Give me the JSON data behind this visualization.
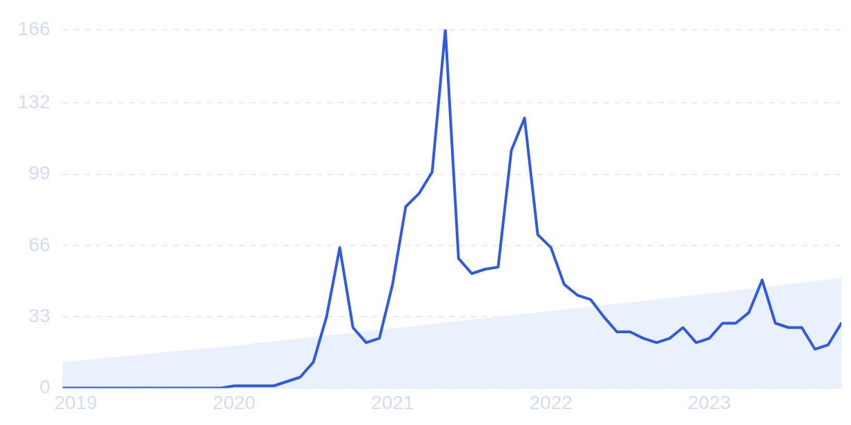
{
  "chart_data": {
    "type": "line",
    "x": [
      "2018-12",
      "2019-01",
      "2019-02",
      "2019-03",
      "2019-04",
      "2019-05",
      "2019-06",
      "2019-07",
      "2019-08",
      "2019-09",
      "2019-10",
      "2019-11",
      "2019-12",
      "2020-01",
      "2020-02",
      "2020-03",
      "2020-04",
      "2020-05",
      "2020-06",
      "2020-07",
      "2020-08",
      "2020-09",
      "2020-10",
      "2020-11",
      "2020-12",
      "2021-01",
      "2021-02",
      "2021-03",
      "2021-04",
      "2021-05",
      "2021-06",
      "2021-07",
      "2021-08",
      "2021-09",
      "2021-10",
      "2021-11",
      "2021-12",
      "2022-01",
      "2022-02",
      "2022-03",
      "2022-04",
      "2022-05",
      "2022-06",
      "2022-07",
      "2022-08",
      "2022-09",
      "2022-10",
      "2022-11",
      "2022-12",
      "2023-01",
      "2023-02",
      "2023-03",
      "2023-04",
      "2023-05",
      "2023-06",
      "2023-07",
      "2023-08",
      "2023-09",
      "2023-10",
      "2023-11"
    ],
    "series": [
      {
        "color": "#2f5be3",
        "values": [
          0,
          0,
          0,
          0,
          0,
          0,
          0,
          0,
          0,
          0,
          0,
          0,
          0,
          1,
          1,
          1,
          1,
          3,
          5,
          12,
          33,
          65,
          28,
          21,
          23,
          48,
          84,
          90,
          100,
          166,
          60,
          53,
          55,
          56,
          110,
          125,
          71,
          65,
          48,
          43,
          41,
          33,
          26,
          26,
          23,
          21,
          23,
          28,
          21,
          23,
          30,
          30,
          35,
          50,
          30,
          28,
          28,
          18,
          20,
          30
        ]
      },
      {
        "type": "area",
        "color": "#eaf1fc",
        "x": [
          "2018-12",
          "2019-12",
          "2020-12",
          "2021-12",
          "2022-12",
          "2023-11"
        ],
        "values": [
          12,
          19,
          27,
          35,
          43,
          51
        ]
      }
    ],
    "xlim": [
      "2018-12",
      "2023-11"
    ],
    "xticks": [
      "2019",
      "2020",
      "2021",
      "2022",
      "2023"
    ],
    "ylim": [
      0,
      166
    ],
    "yticks": [
      0,
      33,
      66,
      99,
      132,
      166
    ],
    "grid": "y",
    "legend": false,
    "line_style": "solid",
    "marker": "none"
  }
}
